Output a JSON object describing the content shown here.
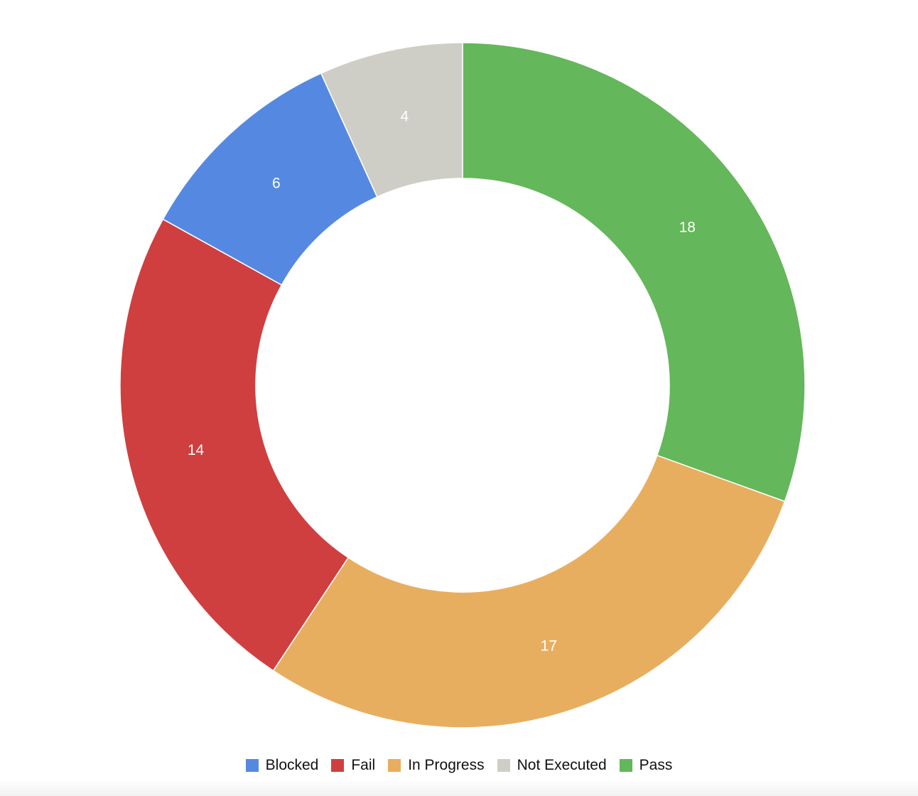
{
  "chart_data": {
    "type": "pie",
    "style": "donut",
    "title": "",
    "categories": [
      "Blocked",
      "Fail",
      "In Progress",
      "Not Executed",
      "Pass"
    ],
    "values": [
      6,
      14,
      17,
      4,
      18
    ],
    "colors": [
      "#5589e1",
      "#cf3f3f",
      "#e8ae60",
      "#cfcec6",
      "#64b75a"
    ],
    "draw_order": [
      "Pass",
      "In Progress",
      "Fail",
      "Blocked",
      "Not Executed"
    ],
    "data_labels": true,
    "legend": {
      "position": "bottom"
    }
  }
}
